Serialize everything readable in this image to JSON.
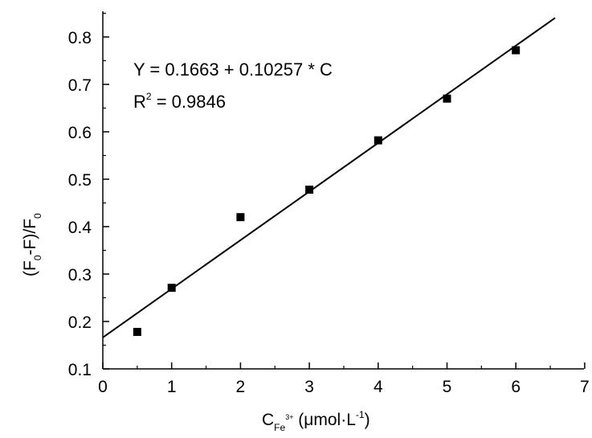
{
  "chart_data": {
    "type": "scatter",
    "xlim": [
      0,
      7
    ],
    "ylim": [
      0.1,
      0.85
    ],
    "xticks": [
      0,
      1,
      2,
      3,
      4,
      5,
      6,
      7
    ],
    "yticks": [
      0.1,
      0.2,
      0.3,
      0.4,
      0.5,
      0.6,
      0.7,
      0.8
    ],
    "xtick_labels": [
      "0",
      "1",
      "2",
      "3",
      "4",
      "5",
      "6",
      "7"
    ],
    "ytick_labels": [
      "0.1",
      "0.2",
      "0.3",
      "0.4",
      "0.5",
      "0.6",
      "0.7",
      "0.8"
    ],
    "series": [
      {
        "marker": "square",
        "color": "#000000",
        "points": [
          {
            "x": 0.5,
            "y": 0.178
          },
          {
            "x": 1,
            "y": 0.271
          },
          {
            "x": 2,
            "y": 0.42
          },
          {
            "x": 3,
            "y": 0.478
          },
          {
            "x": 4,
            "y": 0.582
          },
          {
            "x": 5,
            "y": 0.67
          },
          {
            "x": 6,
            "y": 0.772
          }
        ]
      }
    ],
    "fit_line": {
      "intercept": 0.1663,
      "slope": 0.10257,
      "x_range": [
        0,
        6.57
      ],
      "color": "#000000"
    },
    "annotations": {
      "equation": "Y = 0.1663 + 0.10257 * C",
      "r2_label": "R",
      "r2_sup": "2",
      "r2_value": " = 0.9846"
    },
    "xlabel": {
      "main": "C",
      "sub": "Fe",
      "sup": "3+",
      "rest": " (μmol·L",
      "rest_sup": "-1",
      "close": ")"
    },
    "ylabel": {
      "p1": "(F",
      "sub1": "0",
      "p2": "-F)/F",
      "sub2": "0"
    }
  }
}
